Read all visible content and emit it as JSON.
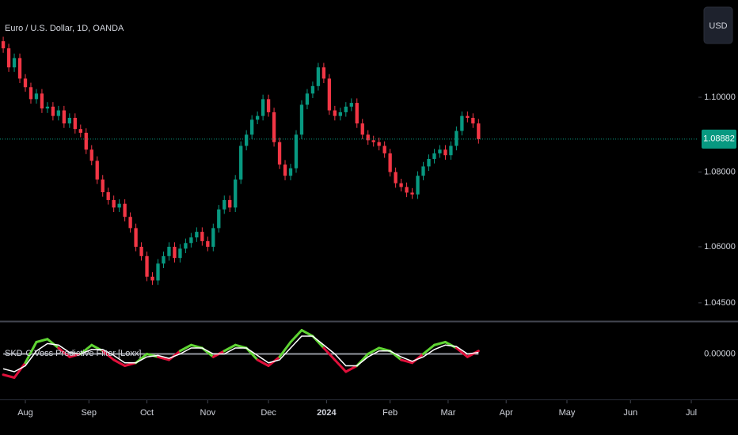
{
  "chart_data": {
    "type": "candlestick",
    "title": "Euro / U.S. Dollar, 1D, OANDA",
    "currency": "USD",
    "x": [
      -8,
      -6,
      -4,
      -2,
      0,
      2,
      4,
      6,
      8,
      10,
      12,
      14,
      16,
      18,
      20,
      22,
      24,
      26,
      28,
      30,
      32,
      34,
      36,
      38,
      40,
      42,
      44,
      46,
      48,
      50,
      52,
      54,
      56,
      58,
      60,
      62,
      64,
      66,
      68,
      70,
      72,
      74,
      76,
      78,
      80,
      82,
      84,
      86,
      88,
      90,
      92,
      94,
      96,
      98,
      100,
      102,
      104,
      106,
      108,
      110,
      112,
      114,
      116,
      118,
      120,
      122,
      124,
      126,
      128,
      130,
      132,
      134,
      136,
      138,
      140,
      142,
      144,
      146,
      148,
      150,
      152,
      154,
      156,
      158,
      160,
      162,
      164
    ],
    "open": [
      1.115,
      1.1131,
      1.108,
      1.1105,
      1.105,
      1.1027,
      1.0995,
      1.101,
      1.097,
      1.0975,
      1.095,
      1.0965,
      1.093,
      1.0945,
      1.0915,
      1.0905,
      1.086,
      1.083,
      1.078,
      1.0746,
      1.0725,
      1.0705,
      1.0715,
      1.068,
      1.065,
      1.06,
      1.0575,
      1.052,
      1.051,
      1.0555,
      1.0575,
      1.06,
      1.057,
      1.0595,
      1.061,
      1.0625,
      1.064,
      1.0615,
      1.06,
      1.065,
      1.07,
      1.0725,
      1.0705,
      1.078,
      1.087,
      1.09,
      1.094,
      1.095,
      1.0995,
      1.096,
      1.088,
      1.082,
      1.079,
      1.081,
      1.09,
      1.098,
      1.101,
      1.103,
      1.108,
      1.105,
      1.0965,
      1.095,
      1.096,
      1.0975,
      1.0985,
      1.093,
      1.09,
      1.0885,
      1.088,
      1.087,
      1.085,
      1.08,
      1.077,
      1.076,
      1.0745,
      1.074,
      1.079,
      1.0815,
      1.0835,
      1.085,
      1.086,
      1.0845,
      1.087,
      1.091,
      1.095,
      1.0945,
      1.093
    ],
    "high": [
      1.1162,
      1.1143,
      1.1117,
      1.1117,
      1.1062,
      1.1039,
      1.1022,
      1.1022,
      1.0987,
      1.0987,
      1.0977,
      1.0977,
      1.0957,
      1.0957,
      1.0927,
      1.0917,
      1.0872,
      1.0842,
      1.0792,
      1.0758,
      1.0737,
      1.0727,
      1.0727,
      1.0692,
      1.0662,
      1.0612,
      1.0587,
      1.0532,
      1.0567,
      1.0587,
      1.0612,
      1.0612,
      1.0607,
      1.0622,
      1.0637,
      1.0652,
      1.0652,
      1.0627,
      1.0662,
      1.0712,
      1.0737,
      1.0737,
      1.0792,
      1.0882,
      1.0912,
      1.0952,
      1.0962,
      1.1007,
      1.1007,
      1.0972,
      1.0892,
      1.0832,
      1.0822,
      1.0912,
      1.0992,
      1.1022,
      1.1042,
      1.1092,
      1.1092,
      1.1062,
      1.0977,
      1.0972,
      1.0987,
      1.0997,
      1.0997,
      1.0942,
      1.0912,
      1.0897,
      1.0892,
      1.0882,
      1.0862,
      1.0812,
      1.0782,
      1.0772,
      1.0757,
      1.0802,
      1.0827,
      1.0847,
      1.0862,
      1.0872,
      1.0872,
      1.0882,
      1.0922,
      1.0962,
      1.0962,
      1.0957,
      1.0942
    ],
    "low": [
      1.1119,
      1.1068,
      1.1068,
      1.1038,
      1.1015,
      1.0983,
      1.0983,
      1.0958,
      1.0958,
      1.0938,
      1.0938,
      1.0918,
      1.0918,
      1.0903,
      1.0893,
      1.0848,
      1.0818,
      1.0768,
      1.0734,
      1.0713,
      1.0693,
      1.0693,
      1.0668,
      1.0638,
      1.0588,
      1.0563,
      1.0508,
      1.0498,
      1.0498,
      1.0543,
      1.0563,
      1.0558,
      1.0558,
      1.0583,
      1.0598,
      1.0613,
      1.0603,
      1.0588,
      1.0588,
      1.0638,
      1.0688,
      1.0693,
      1.0693,
      1.0768,
      1.0858,
      1.0888,
      1.0928,
      1.0938,
      1.0948,
      1.0868,
      1.0808,
      1.0778,
      1.0778,
      1.0798,
      1.0888,
      1.0968,
      1.0998,
      1.1018,
      1.1038,
      1.0953,
      1.0938,
      1.0938,
      1.0948,
      1.0963,
      1.0918,
      1.0888,
      1.0873,
      1.0868,
      1.0858,
      1.0838,
      1.0788,
      1.0758,
      1.0748,
      1.0733,
      1.0728,
      1.0728,
      1.0778,
      1.0803,
      1.0823,
      1.0838,
      1.0833,
      1.0833,
      1.0858,
      1.0898,
      1.0933,
      1.0918,
      1.0876
    ],
    "close": [
      1.1131,
      1.108,
      1.1105,
      1.105,
      1.1027,
      1.0995,
      1.101,
      1.097,
      1.0975,
      1.095,
      1.0965,
      1.093,
      1.0945,
      1.0915,
      1.0905,
      1.086,
      1.083,
      1.078,
      1.0746,
      1.0725,
      1.0705,
      1.0715,
      1.068,
      1.065,
      1.06,
      1.0575,
      1.052,
      1.051,
      1.0555,
      1.0575,
      1.06,
      1.057,
      1.0595,
      1.061,
      1.0625,
      1.064,
      1.0615,
      1.06,
      1.065,
      1.07,
      1.0725,
      1.0705,
      1.078,
      1.087,
      1.09,
      1.094,
      1.095,
      1.0995,
      1.096,
      1.088,
      1.082,
      1.079,
      1.081,
      1.09,
      1.098,
      1.101,
      1.103,
      1.108,
      1.105,
      1.0965,
      1.095,
      1.096,
      1.0975,
      1.0985,
      1.093,
      1.09,
      1.0885,
      1.088,
      1.087,
      1.085,
      1.08,
      1.077,
      1.076,
      1.0745,
      1.074,
      1.079,
      1.0815,
      1.0835,
      1.085,
      1.086,
      1.0845,
      1.087,
      1.091,
      1.095,
      1.0945,
      1.093,
      1.0888
    ],
    "up_color": "#089981",
    "down_color": "#f23645",
    "ylim": [
      1.04032,
      1.12603
    ],
    "yticks": [
      {
        "value": 1.1,
        "label": "1.10000"
      },
      {
        "value": 1.08,
        "label": "1.08000"
      },
      {
        "value": 1.06,
        "label": "1.06000"
      },
      {
        "value": 1.045,
        "label": "1.04500"
      }
    ],
    "xlim": [
      -9.17,
      243
    ],
    "xticks": [
      {
        "value": 0,
        "label": "Aug"
      },
      {
        "value": 23,
        "label": "Sep"
      },
      {
        "value": 44,
        "label": "Oct"
      },
      {
        "value": 66,
        "label": "Nov"
      },
      {
        "value": 88,
        "label": "Dec"
      },
      {
        "value": 109,
        "label": "2024"
      },
      {
        "value": 132,
        "label": "Feb"
      },
      {
        "value": 153,
        "label": "Mar"
      },
      {
        "value": 174,
        "label": "Apr"
      },
      {
        "value": 196,
        "label": "May"
      },
      {
        "value": 219,
        "label": "Jun"
      },
      {
        "value": 241,
        "label": "Jul"
      }
    ],
    "last_price": 1.08882,
    "indicator": {
      "title": "SKD-C Voss Predictive Filter [Loxx]",
      "x": [
        -8,
        -4,
        0,
        4,
        8,
        12,
        16,
        20,
        24,
        28,
        32,
        36,
        40,
        44,
        48,
        52,
        56,
        60,
        64,
        68,
        72,
        76,
        80,
        84,
        88,
        92,
        96,
        100,
        104,
        108,
        112,
        116,
        120,
        124,
        128,
        132,
        136,
        140,
        144,
        148,
        152,
        156,
        160,
        164
      ],
      "filter": [
        -0.7,
        -0.8,
        -0.3,
        0.4,
        0.5,
        0.2,
        -0.1,
        0.0,
        0.3,
        0.1,
        -0.2,
        -0.4,
        -0.3,
        0.0,
        -0.1,
        -0.2,
        0.1,
        0.3,
        0.2,
        -0.1,
        0.1,
        0.3,
        0.2,
        -0.2,
        -0.4,
        -0.1,
        0.4,
        0.8,
        0.6,
        0.2,
        -0.2,
        -0.6,
        -0.4,
        0.0,
        0.2,
        0.1,
        -0.2,
        -0.3,
        0.0,
        0.3,
        0.4,
        0.2,
        -0.1,
        0.1
      ],
      "predict": [
        -0.5,
        -0.6,
        -0.4,
        0.1,
        0.35,
        0.3,
        0.05,
        0.0,
        0.15,
        0.15,
        -0.05,
        -0.3,
        -0.3,
        -0.1,
        -0.05,
        -0.15,
        0.0,
        0.2,
        0.2,
        0.0,
        0.0,
        0.2,
        0.2,
        -0.05,
        -0.3,
        -0.2,
        0.2,
        0.6,
        0.6,
        0.3,
        0.0,
        -0.4,
        -0.4,
        -0.1,
        0.1,
        0.1,
        -0.1,
        -0.25,
        -0.1,
        0.15,
        0.3,
        0.25,
        0.0,
        0.05
      ],
      "up_color": "#5fd433",
      "down_color": "#e0103b",
      "predict_color": "#ffffff",
      "ylim": [
        -1.4,
        1.0
      ],
      "yticks": [
        {
          "value": 0,
          "label": "0.00000"
        }
      ]
    }
  }
}
